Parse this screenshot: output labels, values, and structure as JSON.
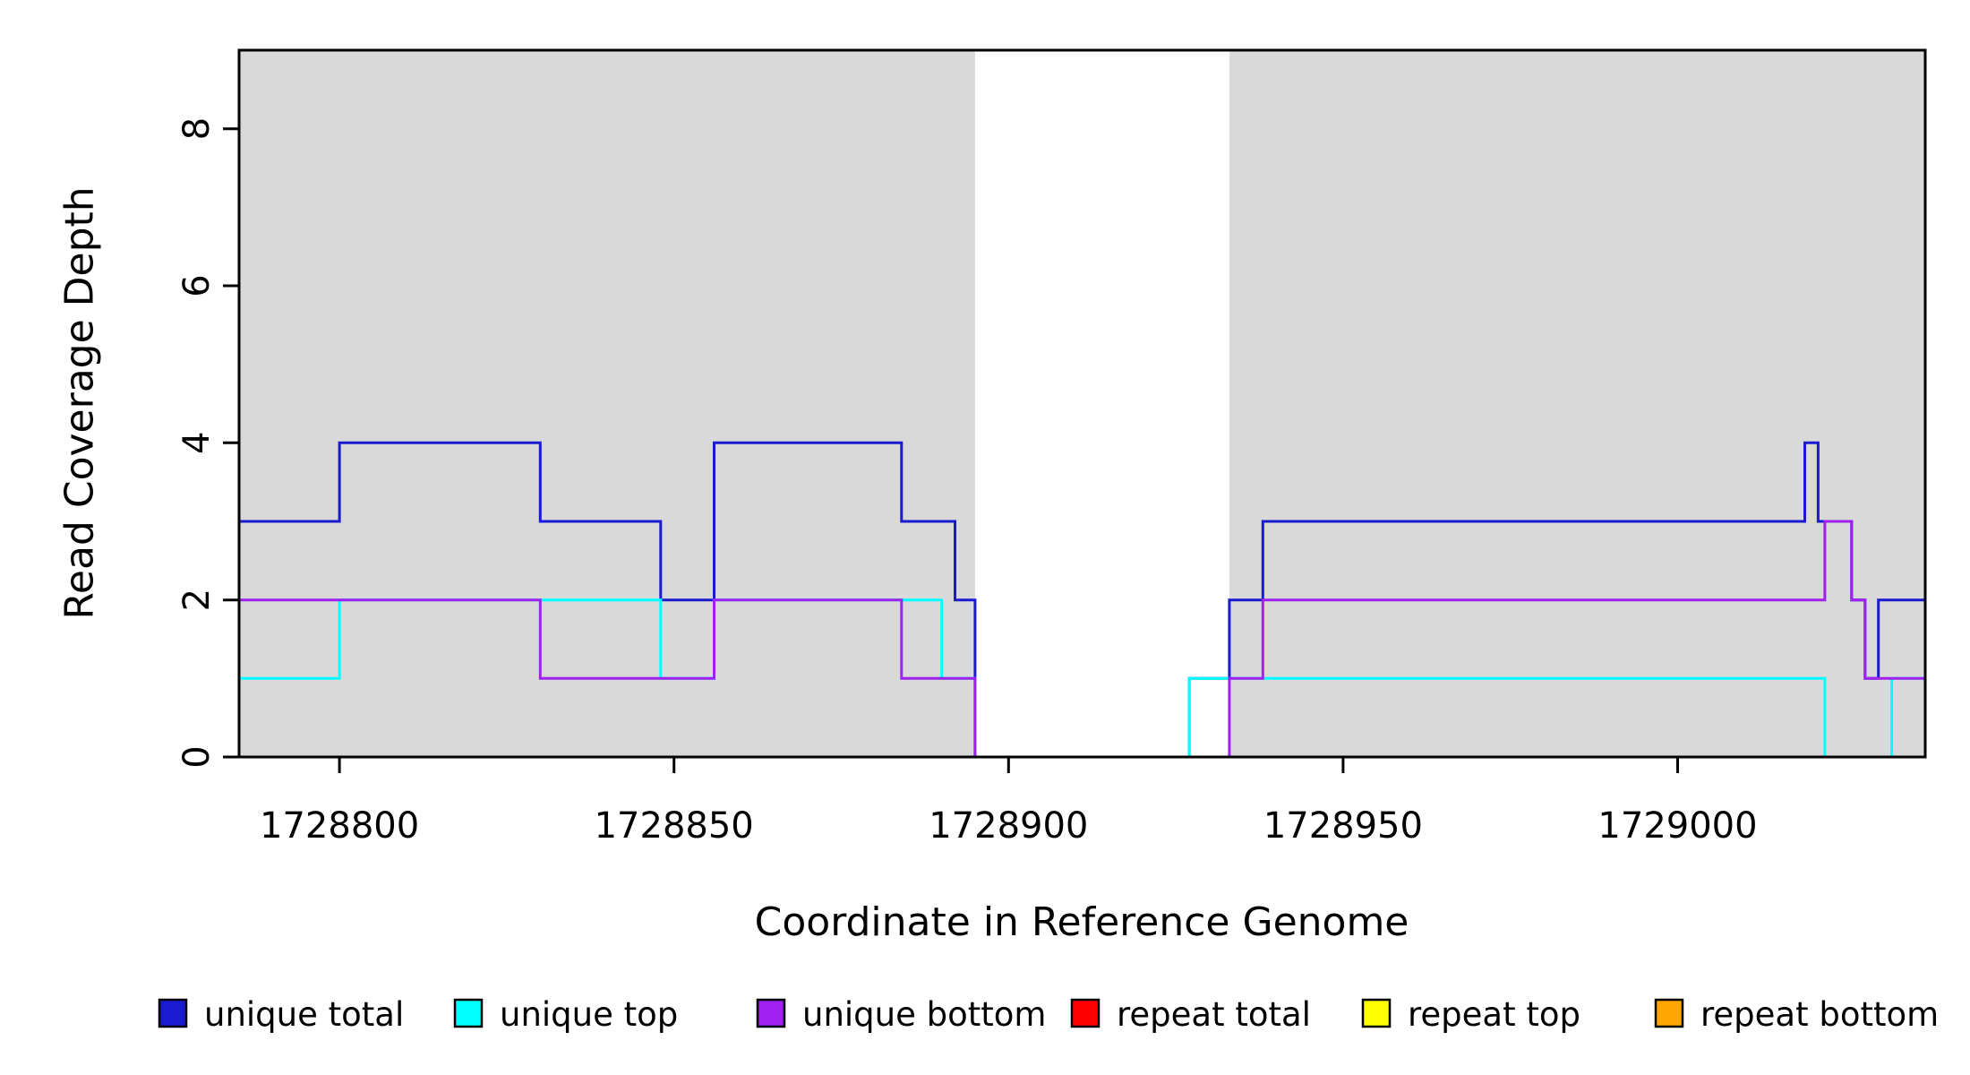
{
  "chart_data": {
    "type": "line",
    "step": true,
    "title": "",
    "xlabel": "Coordinate in Reference Genome",
    "ylabel": "Read Coverage Depth",
    "xlim": [
      1728785,
      1729037
    ],
    "ylim": [
      0,
      9
    ],
    "xticks": [
      1728800,
      1728850,
      1728900,
      1728950,
      1729000
    ],
    "yticks": [
      0,
      2,
      4,
      6,
      8
    ],
    "grid": false,
    "legend_position": "bottom",
    "plot_background": "#ffffff",
    "shade_color": "#d9d9d9",
    "shaded_regions": [
      {
        "x0": 1728785,
        "x1": 1728895
      },
      {
        "x0": 1728933,
        "x1": 1729037
      }
    ],
    "series": [
      {
        "name": "repeat total",
        "color": "#ff0000",
        "points": [
          [
            1728785,
            0
          ],
          [
            1729037,
            0
          ]
        ]
      },
      {
        "name": "repeat top",
        "color": "#ffff00",
        "points": [
          [
            1728785,
            0
          ],
          [
            1729037,
            0
          ]
        ]
      },
      {
        "name": "repeat bottom",
        "color": "#ffa500",
        "points": [
          [
            1728785,
            0
          ],
          [
            1729037,
            0
          ]
        ]
      },
      {
        "name": "unique total",
        "color": "#1a1ad1",
        "points": [
          [
            1728785,
            3
          ],
          [
            1728800,
            4
          ],
          [
            1728830,
            3
          ],
          [
            1728848,
            2
          ],
          [
            1728856,
            4
          ],
          [
            1728884,
            3
          ],
          [
            1728892,
            2
          ],
          [
            1728895,
            0
          ],
          [
            1728927,
            1
          ],
          [
            1728933,
            2
          ],
          [
            1728938,
            3
          ],
          [
            1729019,
            4
          ],
          [
            1729021,
            3
          ],
          [
            1729026,
            2
          ],
          [
            1729028,
            1
          ],
          [
            1729030,
            2
          ],
          [
            1729037,
            2
          ]
        ]
      },
      {
        "name": "unique top",
        "color": "#00ffff",
        "points": [
          [
            1728785,
            1
          ],
          [
            1728800,
            2
          ],
          [
            1728848,
            1
          ],
          [
            1728856,
            2
          ],
          [
            1728890,
            1
          ],
          [
            1728895,
            0
          ],
          [
            1728927,
            1
          ],
          [
            1729022,
            0
          ],
          [
            1729032,
            1
          ],
          [
            1729037,
            1
          ]
        ]
      },
      {
        "name": "unique bottom",
        "color": "#a020f0",
        "points": [
          [
            1728785,
            2
          ],
          [
            1728830,
            1
          ],
          [
            1728856,
            2
          ],
          [
            1728884,
            1
          ],
          [
            1728895,
            0
          ],
          [
            1728933,
            1
          ],
          [
            1728938,
            2
          ],
          [
            1729022,
            3
          ],
          [
            1729026,
            2
          ],
          [
            1729028,
            1
          ],
          [
            1729037,
            1
          ]
        ]
      }
    ],
    "legend": [
      {
        "label": "unique total",
        "color": "#1a1ad1"
      },
      {
        "label": "unique top",
        "color": "#00ffff"
      },
      {
        "label": "unique bottom",
        "color": "#a020f0"
      },
      {
        "label": "repeat total",
        "color": "#ff0000"
      },
      {
        "label": "repeat top",
        "color": "#ffff00"
      },
      {
        "label": "repeat bottom",
        "color": "#ffa500"
      }
    ]
  }
}
